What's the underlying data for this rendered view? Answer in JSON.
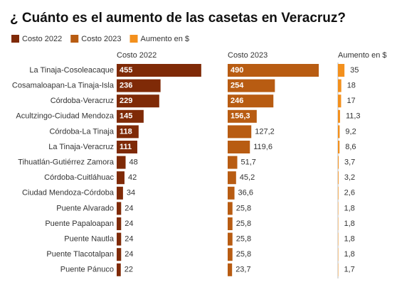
{
  "chart_data": {
    "type": "bar",
    "title": "¿ Cuánto es el aumento de las casetas en Veracruz?",
    "categories": [
      "La Tinaja-Cosoleacaque",
      "Cosamaloapan-La Tinaja-Isla",
      "Córdoba-Veracruz",
      "Acultzingo-Ciudad Mendoza",
      "Córdoba-La Tinaja",
      "La Tinaja-Veracruz",
      "Tihuatlán-Gutiérrez Zamora",
      "Córdoba-Cuitláhuac",
      "Ciudad Mendoza-Córdoba",
      "Puente Alvarado",
      "Puente Papaloapan",
      "Puente Nautla",
      "Puente Tlacotalpan",
      "Puente Pánuco"
    ],
    "series": [
      {
        "name": "Costo 2022",
        "color": "#7f2a07",
        "values": [
          455,
          236,
          229,
          145,
          118,
          111,
          48,
          42,
          34,
          24,
          24,
          24,
          24,
          22
        ]
      },
      {
        "name": "Costo 2023",
        "color": "#b85c12",
        "values": [
          490,
          254,
          246,
          156.3,
          127.2,
          119.6,
          51.7,
          45.2,
          36.6,
          25.8,
          25.8,
          25.8,
          25.8,
          23.7
        ],
        "value_labels": [
          "490",
          "254",
          "246",
          "156,3",
          "127,2",
          "119,6",
          "51,7",
          "45,2",
          "36,6",
          "25,8",
          "25,8",
          "25,8",
          "25,8",
          "23,7"
        ]
      },
      {
        "name": "Aumento en $",
        "color": "#f3901d",
        "values": [
          35,
          18,
          17,
          11.3,
          9.2,
          8.6,
          3.7,
          3.2,
          2.6,
          1.8,
          1.8,
          1.8,
          1.8,
          1.7
        ],
        "value_labels": [
          "35",
          "18",
          "17",
          "11,3",
          "9,2",
          "8,6",
          "3,7",
          "3,2",
          "2,6",
          "1,8",
          "1,8",
          "1,8",
          "1,8",
          "1,7"
        ]
      }
    ]
  }
}
